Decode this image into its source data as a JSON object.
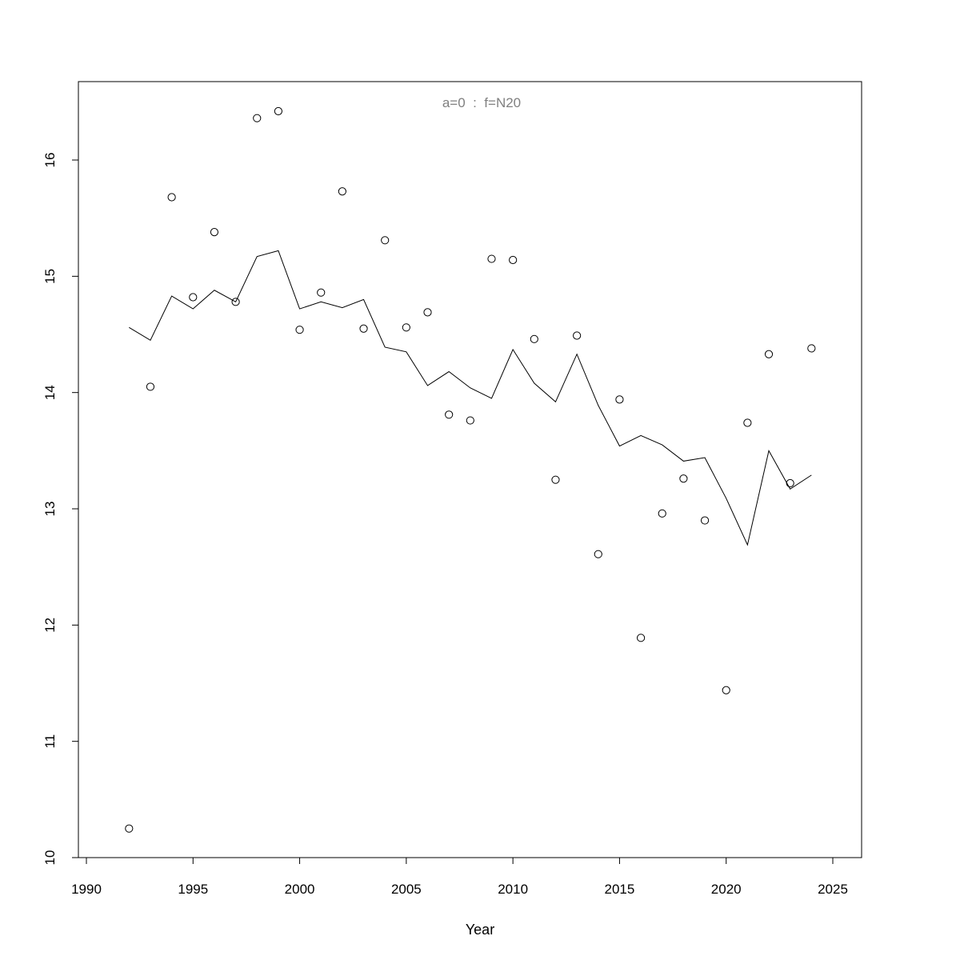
{
  "chart_data": {
    "type": "scatter",
    "title": "a=0  :  f=N20",
    "title_color": "#808080",
    "xlabel": "Year",
    "ylabel": "",
    "xlim": [
      1990.5,
      2025.5
    ],
    "ylim": [
      10,
      16.7
    ],
    "x_ticks": [
      1990,
      1995,
      2000,
      2005,
      2010,
      2015,
      2020,
      2025
    ],
    "y_ticks": [
      10,
      11,
      12,
      13,
      14,
      15,
      16
    ],
    "grid": false,
    "x": [
      1992,
      1993,
      1994,
      1995,
      1996,
      1997,
      1998,
      1999,
      2000,
      2001,
      2002,
      2003,
      2004,
      2005,
      2006,
      2007,
      2008,
      2009,
      2010,
      2011,
      2012,
      2013,
      2014,
      2015,
      2016,
      2017,
      2018,
      2019,
      2020,
      2021,
      2022,
      2023,
      2024
    ],
    "series": [
      {
        "style": "points",
        "marker": "open-circle",
        "color": "#000000",
        "values": [
          10.25,
          14.05,
          15.68,
          14.82,
          15.38,
          14.78,
          16.36,
          16.42,
          14.54,
          14.86,
          15.73,
          14.55,
          15.31,
          14.56,
          14.69,
          13.81,
          13.76,
          15.15,
          15.14,
          14.46,
          13.25,
          14.49,
          12.61,
          13.94,
          11.89,
          12.96,
          13.26,
          12.9,
          11.44,
          13.74,
          14.33,
          13.22,
          14.38
        ]
      },
      {
        "style": "line",
        "color": "#000000",
        "values": [
          14.56,
          14.45,
          14.83,
          14.72,
          14.88,
          14.78,
          15.17,
          15.22,
          14.72,
          14.78,
          14.73,
          14.8,
          14.39,
          14.35,
          14.06,
          14.18,
          14.04,
          13.95,
          14.37,
          14.08,
          13.92,
          14.33,
          13.89,
          13.54,
          13.63,
          13.55,
          13.41,
          13.44,
          13.09,
          12.69,
          13.5,
          13.17,
          13.29
        ]
      }
    ]
  }
}
